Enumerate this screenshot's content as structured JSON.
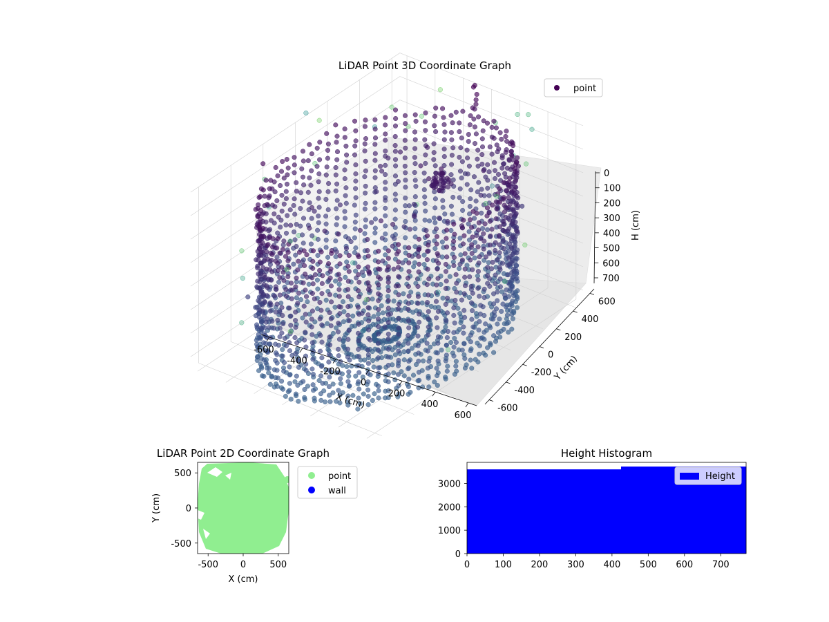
{
  "chart_data": [
    {
      "type": "scatter",
      "title": "LiDAR Point 3D Coordinate Graph",
      "xlabel": "X (cm)",
      "ylabel": "Y (cm)",
      "zlabel": "H (cm)",
      "xlim": [
        -650,
        650
      ],
      "ylim": [
        -650,
        650
      ],
      "zlim": [
        750,
        0
      ],
      "xticks": [
        "-600",
        "-400",
        "-200",
        "0",
        "200",
        "400",
        "600"
      ],
      "yticks": [
        "600",
        "400",
        "200",
        "0",
        "-200",
        "-400",
        "-600"
      ],
      "zticks": [
        "0",
        "100",
        "200",
        "300",
        "400",
        "500",
        "600",
        "700"
      ],
      "legend": [
        {
          "label": "point",
          "color": "#440154"
        }
      ],
      "legend_position": "top-right",
      "colormap": "viridis",
      "grid": true,
      "series": [
        {
          "name": "point",
          "description_points": "cylindrical wall, radius ~600 cm, heights 0-750 cm",
          "radius": 600,
          "h_range": [
            0,
            750
          ]
        }
      ]
    },
    {
      "type": "scatter",
      "title": "LiDAR Point 2D Coordinate Graph",
      "xlabel": "X (cm)",
      "ylabel": "Y (cm)",
      "xlim": [
        -650,
        650
      ],
      "ylim": [
        -650,
        650
      ],
      "xticks": [
        "-500",
        "0",
        "500"
      ],
      "yticks": [
        "500",
        "0",
        "-500"
      ],
      "legend": [
        {
          "label": "point",
          "color": "#90ee90"
        },
        {
          "label": "wall",
          "color": "#0000ff"
        }
      ],
      "legend_position": "outside-right",
      "series": [
        {
          "name": "point",
          "color": "#90ee90",
          "radius": 640
        },
        {
          "name": "wall",
          "color": "#0000ff"
        }
      ]
    },
    {
      "type": "bar",
      "title": "Height Histogram",
      "xlim": [
        0,
        770
      ],
      "ylim": [
        0,
        3900
      ],
      "xticks": [
        "0",
        "100",
        "200",
        "300",
        "400",
        "500",
        "600",
        "700"
      ],
      "yticks": [
        "0",
        "1000",
        "2000",
        "3000"
      ],
      "legend": [
        {
          "label": "Height",
          "color": "#0000ff"
        }
      ],
      "legend_position": "top-right",
      "series": [
        {
          "name": "Height",
          "color": "#0000ff",
          "bins": [
            {
              "x0": 0,
              "x1": 425,
              "value": 3600
            },
            {
              "x0": 425,
              "x1": 770,
              "value": 3720
            }
          ]
        }
      ]
    }
  ]
}
